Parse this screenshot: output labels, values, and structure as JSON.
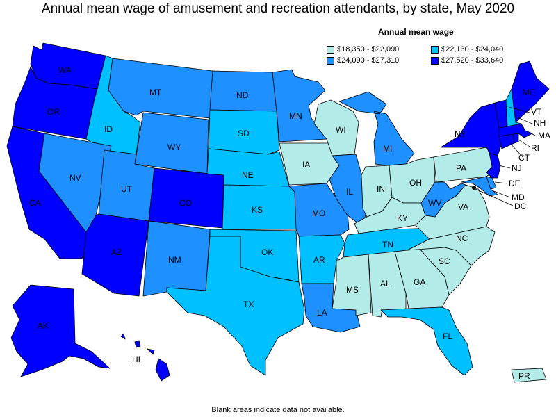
{
  "title": "Annual mean wage of amusement and recreation attendants, by state, May 2020",
  "legend": {
    "title": "Annual mean wage",
    "items": [
      {
        "label": "$18,350 - $22,090",
        "color": "#b2ebe8"
      },
      {
        "label": "$22,130 - $24,040",
        "color": "#00c0ff"
      },
      {
        "label": "$24,090 - $27,310",
        "color": "#1e90ff"
      },
      {
        "label": "$27,520 - $33,640",
        "color": "#0000ff"
      }
    ]
  },
  "states": {
    "WA": {
      "label": "WA",
      "color": "#0000ff"
    },
    "OR": {
      "label": "OR",
      "color": "#0000ff"
    },
    "CA": {
      "label": "CA",
      "color": "#0000ff"
    },
    "AK": {
      "label": "AK",
      "color": "#0000ff"
    },
    "HI": {
      "label": "HI",
      "color": "#0000ff"
    },
    "ID": {
      "label": "ID",
      "color": "#00c0ff"
    },
    "NV": {
      "label": "NV",
      "color": "#1e90ff"
    },
    "AZ": {
      "label": "AZ",
      "color": "#0000ff"
    },
    "UT": {
      "label": "UT",
      "color": "#1e90ff"
    },
    "MT": {
      "label": "MT",
      "color": "#1e90ff"
    },
    "WY": {
      "label": "WY",
      "color": "#1e90ff"
    },
    "CO": {
      "label": "CO",
      "color": "#0000ff"
    },
    "NM": {
      "label": "NM",
      "color": "#1e90ff"
    },
    "ND": {
      "label": "ND",
      "color": "#1e90ff"
    },
    "SD": {
      "label": "SD",
      "color": "#00c0ff"
    },
    "NE": {
      "label": "NE",
      "color": "#00c0ff"
    },
    "KS": {
      "label": "KS",
      "color": "#00c0ff"
    },
    "OK": {
      "label": "OK",
      "color": "#00c0ff"
    },
    "TX": {
      "label": "TX",
      "color": "#00c0ff"
    },
    "MN": {
      "label": "MN",
      "color": "#1e90ff"
    },
    "IA": {
      "label": "IA",
      "color": "#b2ebe8"
    },
    "MO": {
      "label": "MO",
      "color": "#1e90ff"
    },
    "AR": {
      "label": "AR",
      "color": "#00c0ff"
    },
    "LA": {
      "label": "LA",
      "color": "#1e90ff"
    },
    "WI": {
      "label": "WI",
      "color": "#b2ebe8"
    },
    "IL": {
      "label": "IL",
      "color": "#1e90ff"
    },
    "MI": {
      "label": "MI",
      "color": "#1e90ff"
    },
    "IN": {
      "label": "IN",
      "color": "#b2ebe8"
    },
    "OH": {
      "label": "OH",
      "color": "#b2ebe8"
    },
    "KY": {
      "label": "KY",
      "color": "#b2ebe8"
    },
    "TN": {
      "label": "TN",
      "color": "#00c0ff"
    },
    "MS": {
      "label": "MS",
      "color": "#b2ebe8"
    },
    "AL": {
      "label": "AL",
      "color": "#b2ebe8"
    },
    "GA": {
      "label": "GA",
      "color": "#b2ebe8"
    },
    "FL": {
      "label": "FL",
      "color": "#00c0ff"
    },
    "SC": {
      "label": "SC",
      "color": "#b2ebe8"
    },
    "NC": {
      "label": "NC",
      "color": "#b2ebe8"
    },
    "VA": {
      "label": "VA",
      "color": "#b2ebe8"
    },
    "WV": {
      "label": "WV",
      "color": "#1e90ff"
    },
    "PA": {
      "label": "PA",
      "color": "#b2ebe8"
    },
    "NY": {
      "label": "NY",
      "color": "#0000ff"
    },
    "VT": {
      "label": "VT",
      "color": "#0000ff"
    },
    "NH": {
      "label": "NH",
      "color": "#00c0ff"
    },
    "ME": {
      "label": "ME",
      "color": "#0000ff"
    },
    "MA": {
      "label": "MA",
      "color": "#0000ff"
    },
    "RI": {
      "label": "RI",
      "color": "#0000ff"
    },
    "CT": {
      "label": "CT",
      "color": "#0000ff"
    },
    "NJ": {
      "label": "NJ",
      "color": "#0000ff"
    },
    "DE": {
      "label": "DE",
      "color": "#1e90ff"
    },
    "MD": {
      "label": "MD",
      "color": "#1e90ff"
    },
    "DC": {
      "label": "DC",
      "color": "#000000"
    },
    "PR": {
      "label": "PR",
      "color": "#b2ebe8"
    }
  },
  "footnote": "Blank areas indicate data not available."
}
